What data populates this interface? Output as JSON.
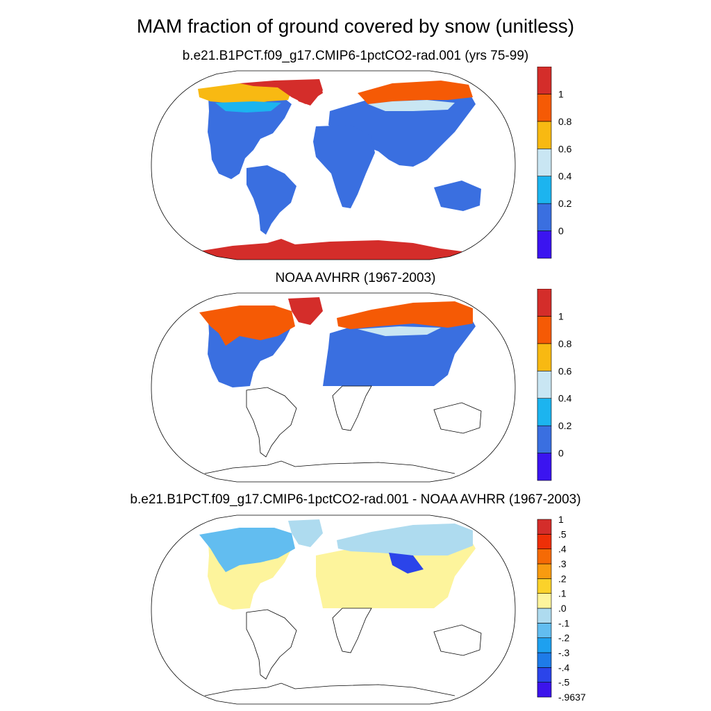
{
  "title": "MAM fraction of ground covered by snow (unitless)",
  "panels": [
    {
      "id": "model",
      "title": "b.e21.B1PCT.f09_g17.CMIP6-1pctCO2-rad.001 (yrs 75-99)",
      "colorbar": {
        "colors": [
          "#3b14f0",
          "#3a6fe0",
          "#1cb4ef",
          "#c9e6f3",
          "#f8b912",
          "#f55a05",
          "#d42d2a"
        ],
        "labels": [
          "0",
          "0.2",
          "0.4",
          "0.6",
          "0.8",
          "1"
        ]
      }
    },
    {
      "id": "obs",
      "title": "NOAA AVHRR (1967-2003)",
      "colorbar": {
        "colors": [
          "#3b14f0",
          "#3a6fe0",
          "#1cb4ef",
          "#c9e6f3",
          "#f8b912",
          "#f55a05",
          "#d42d2a"
        ],
        "labels": [
          "0",
          "0.2",
          "0.4",
          "0.6",
          "0.8",
          "1"
        ]
      }
    },
    {
      "id": "diff",
      "title": "b.e21.B1PCT.f09_g17.CMIP6-1pctCO2-rad.001 - NOAA AVHRR (1967-2003)",
      "colorbar": {
        "colors": [
          "#3c14ec",
          "#2b44ea",
          "#1e7be8",
          "#1ea0ef",
          "#62bdf0",
          "#aedbef",
          "#fdf49c",
          "#fbd22a",
          "#f89b10",
          "#f56a05",
          "#ee2f07",
          "#d42d2a"
        ],
        "labels": [
          "1",
          ".5",
          ".4",
          ".3",
          ".2",
          ".1",
          ".0",
          "-.1",
          "-.2",
          "-.3",
          "-.4",
          "-.5",
          "-.9637"
        ]
      }
    }
  ],
  "colors": {
    "land_low": "#3a6fe0",
    "antarctica": "#d42d2a",
    "diff_positive": "#fdf49c",
    "diff_negative": "#aedbef"
  }
}
